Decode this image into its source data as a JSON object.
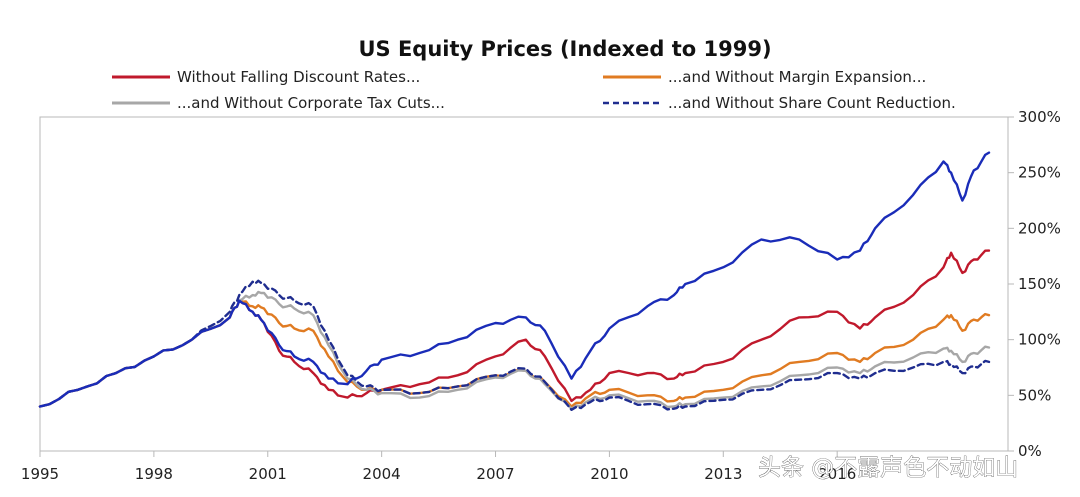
{
  "chart_data": {
    "type": "line",
    "title": "US Equity Prices (Indexed to 1999)",
    "xlabel": "",
    "ylabel": "",
    "xlim": [
      1995,
      2020.5
    ],
    "ylim": [
      0,
      300
    ],
    "x_ticks": [
      1995,
      1998,
      2001,
      2004,
      2007,
      2010,
      2013,
      2016
    ],
    "x_tick_labels": [
      "1995",
      "1998",
      "2001",
      "2004",
      "2007",
      "2010",
      "2013",
      "2016"
    ],
    "y_ticks": [
      0,
      50,
      100,
      150,
      200,
      250,
      300
    ],
    "y_tick_labels": [
      "0%",
      "50%",
      "100%",
      "150%",
      "200%",
      "250%",
      "300%"
    ],
    "grid": false,
    "legend_position": "top",
    "series": [
      {
        "name": "Without Falling Discount Rates...",
        "color": "#c0192c",
        "dash": "solid",
        "x": [
          1995,
          1996,
          1997,
          1998,
          1999,
          2000,
          2000.25,
          2000.6,
          2000.9,
          2001.3,
          2001.7,
          2002.2,
          2002.6,
          2003.1,
          2003.6,
          2004,
          2005,
          2006,
          2007,
          2007.8,
          2008.3,
          2009,
          2009.5,
          2010,
          2011,
          2011.7,
          2012,
          2013,
          2014,
          2015,
          2016,
          2016.6,
          2017,
          2018,
          2018.8,
          2019,
          2019.3,
          2019.6,
          2020
        ],
        "y": [
          40,
          55,
          70,
          85,
          100,
          120,
          135,
          125,
          115,
          90,
          80,
          70,
          55,
          48,
          52,
          55,
          60,
          68,
          85,
          100,
          85,
          45,
          55,
          70,
          70,
          65,
          70,
          80,
          100,
          120,
          125,
          110,
          120,
          140,
          165,
          178,
          160,
          172,
          180
        ]
      },
      {
        "name": "...and Without Margin Expansion...",
        "color": "#e07b22",
        "dash": "solid",
        "x": [
          1995,
          1996,
          1997,
          1998,
          1999,
          2000,
          2000.25,
          2000.6,
          2000.9,
          2001.3,
          2001.7,
          2002.2,
          2002.6,
          2003.1,
          2003.6,
          2004,
          2005,
          2006,
          2007,
          2007.8,
          2008.3,
          2009,
          2009.5,
          2010,
          2011,
          2011.7,
          2012,
          2013,
          2014,
          2015,
          2016,
          2016.6,
          2017,
          2018,
          2018.8,
          2019,
          2019.3,
          2019.6,
          2020
        ],
        "y": [
          40,
          55,
          70,
          85,
          100,
          120,
          135,
          130,
          128,
          115,
          110,
          108,
          85,
          62,
          55,
          55,
          52,
          58,
          68,
          72,
          62,
          40,
          50,
          55,
          50,
          45,
          48,
          55,
          68,
          80,
          88,
          80,
          88,
          100,
          118,
          122,
          108,
          118,
          122
        ]
      },
      {
        "name": "...and Without Corporate Tax Cuts...",
        "color": "#a7a7a7",
        "dash": "solid",
        "x": [
          1995,
          1996,
          1997,
          1998,
          1999,
          2000,
          2000.25,
          2000.6,
          2000.9,
          2001.3,
          2001.7,
          2002.2,
          2002.6,
          2003.1,
          2003.6,
          2004,
          2005,
          2006,
          2007,
          2007.8,
          2008.3,
          2009,
          2009.5,
          2010,
          2011,
          2011.7,
          2012,
          2013,
          2014,
          2015,
          2016,
          2016.6,
          2017,
          2018,
          2018.8,
          2019,
          2019.3,
          2019.6,
          2020
        ],
        "y": [
          40,
          55,
          70,
          85,
          100,
          120,
          135,
          140,
          142,
          132,
          128,
          122,
          95,
          65,
          55,
          52,
          48,
          55,
          66,
          72,
          60,
          38,
          46,
          50,
          45,
          40,
          42,
          48,
          58,
          68,
          75,
          70,
          76,
          84,
          92,
          90,
          80,
          88,
          93
        ]
      },
      {
        "name": "...and Without Share Count Reduction.",
        "color": "#1f2d8f",
        "dash": "dashed",
        "x": [
          1995,
          1996,
          1997,
          1998,
          1999,
          2000,
          2000.25,
          2000.6,
          2000.9,
          2001.3,
          2001.7,
          2002.2,
          2002.6,
          2003.1,
          2003.6,
          2004,
          2005,
          2006,
          2007,
          2007.8,
          2008.3,
          2009,
          2009.5,
          2010,
          2011,
          2011.7,
          2012,
          2013,
          2014,
          2015,
          2016,
          2016.6,
          2017,
          2018,
          2018.8,
          2019,
          2019.3,
          2019.6,
          2020
        ],
        "y": [
          40,
          55,
          70,
          85,
          100,
          125,
          140,
          152,
          150,
          140,
          135,
          130,
          100,
          68,
          58,
          55,
          52,
          58,
          68,
          74,
          62,
          37,
          44,
          48,
          42,
          38,
          40,
          46,
          55,
          64,
          70,
          65,
          70,
          75,
          80,
          78,
          70,
          76,
          80
        ]
      },
      {
        "name": "US Equity Prices",
        "color": "#1a2cb8",
        "dash": "solid",
        "x": [
          1995,
          1996,
          1997,
          1998,
          1999,
          2000,
          2000.25,
          2000.6,
          2000.9,
          2001.3,
          2001.7,
          2002.2,
          2002.6,
          2003.1,
          2003.6,
          2004,
          2005,
          2006,
          2007,
          2007.8,
          2008.3,
          2009,
          2009.5,
          2010,
          2011,
          2011.7,
          2012,
          2013,
          2014,
          2015,
          2016,
          2016.6,
          2017,
          2018,
          2018.8,
          2019,
          2019.3,
          2019.6,
          2020
        ],
        "y": [
          40,
          55,
          70,
          85,
          100,
          120,
          135,
          125,
          115,
          95,
          85,
          80,
          65,
          60,
          72,
          82,
          88,
          100,
          115,
          120,
          108,
          65,
          90,
          110,
          130,
          140,
          150,
          165,
          190,
          190,
          172,
          180,
          200,
          230,
          260,
          250,
          225,
          252,
          268
        ]
      }
    ]
  },
  "legend": [
    {
      "label": "Without Falling Discount Rates...",
      "color": "#c0192c",
      "dash": "solid"
    },
    {
      "label": "...and Without Margin Expansion...",
      "color": "#e07b22",
      "dash": "solid"
    },
    {
      "label": "...and Without Corporate Tax Cuts...",
      "color": "#a7a7a7",
      "dash": "solid"
    },
    {
      "label": "...and Without Share Count Reduction.",
      "color": "#1f2d8f",
      "dash": "dashed"
    }
  ],
  "watermark": {
    "text": "头条 @不露声色不动如山"
  },
  "colors": {
    "axis": "#b8b8b8",
    "text": "#222222"
  }
}
